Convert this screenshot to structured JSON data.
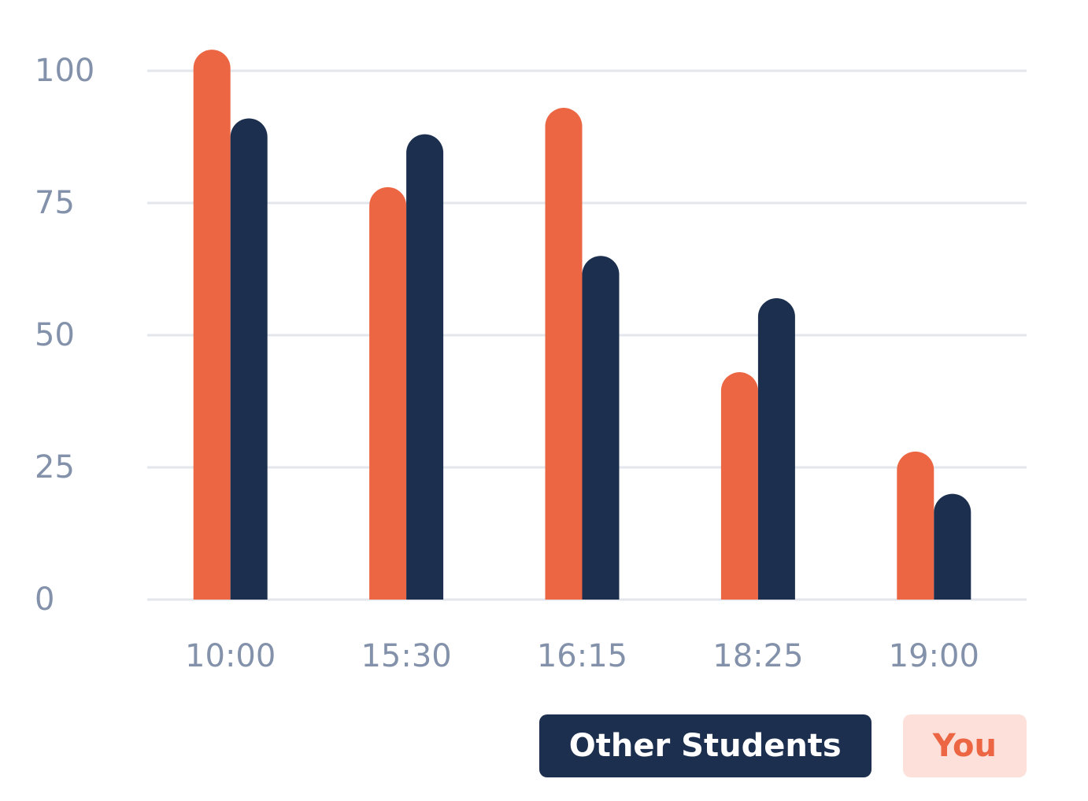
{
  "chart_data": {
    "type": "bar",
    "categories": [
      "10:00",
      "15:30",
      "16:15",
      "18:25",
      "19:00"
    ],
    "series": [
      {
        "name": "You",
        "color": "#ec6644",
        "values": [
          104,
          78,
          93,
          43,
          28
        ]
      },
      {
        "name": "Other Students",
        "color": "#1c2f4e",
        "values": [
          91,
          88,
          65,
          57,
          20
        ]
      }
    ],
    "yticks": [
      0,
      25,
      50,
      75,
      100
    ],
    "ylim": [
      0,
      100
    ],
    "grid": true,
    "legend_position": "bottom-right"
  },
  "legend": {
    "other_label": "Other Students",
    "other_bg": "#1c2f4e",
    "other_fg": "#ffffff",
    "you_label": "You",
    "you_bg": "#fce0d9",
    "you_fg": "#ec6644"
  }
}
